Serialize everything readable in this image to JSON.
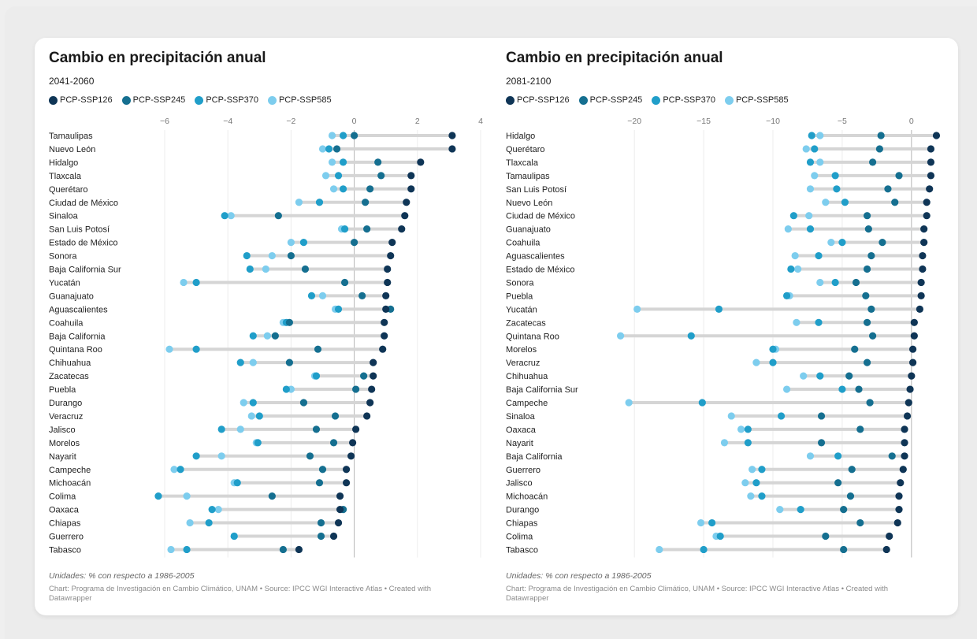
{
  "colors": {
    "PCP-SSP126": "#0f3556",
    "PCP-SSP245": "#156f90",
    "PCP-SSP370": "#209ec9",
    "PCP-SSP585": "#7dcdee",
    "connector": "#d5d5d5",
    "zero_line": "#b5b5b5",
    "grid": "#ececec"
  },
  "chart_data": [
    {
      "type": "scatter",
      "title": "Cambio en precipitación anual",
      "subtitle": "2041-2060",
      "legend": [
        "PCP-SSP126",
        "PCP-SSP245",
        "PCP-SSP370",
        "PCP-SSP585"
      ],
      "xlim": [
        -6,
        4
      ],
      "xticks": [
        -6,
        -4,
        -2,
        0,
        2,
        4
      ],
      "xtick_labels": [
        "−6",
        "−4",
        "−2",
        "0",
        "2",
        "4"
      ],
      "units_note": "Unidades: % con respecto a 1986-2005",
      "credit": "Chart: Programa de Investigación en Cambio Climático, UNAM • Source: IPCC WGI Interactive Atlas • Created with Datawrapper",
      "categories": [
        "Tamaulipas",
        "Nuevo León",
        "Hidalgo",
        "Tlaxcala",
        "Querétaro",
        "Ciudad de México",
        "Sinaloa",
        "San Luis Potosí",
        "Estado de México",
        "Sonora",
        "Baja California Sur",
        "Yucatán",
        "Guanajuato",
        "Aguascalientes",
        "Coahuila",
        "Baja California",
        "Quintana Roo",
        "Chihuahua",
        "Zacatecas",
        "Puebla",
        "Durango",
        "Veracruz",
        "Jalisco",
        "Morelos",
        "Nayarit",
        "Campeche",
        "Michoacán",
        "Colima",
        "Oaxaca",
        "Chiapas",
        "Guerrero",
        "Tabasco"
      ],
      "series": [
        {
          "name": "PCP-SSP126",
          "values": [
            3.1,
            3.1,
            2.1,
            1.8,
            1.8,
            1.65,
            1.6,
            1.5,
            1.2,
            1.15,
            1.05,
            1.05,
            1.0,
            1.0,
            0.95,
            0.95,
            0.9,
            0.6,
            0.6,
            0.55,
            0.5,
            0.4,
            0.05,
            -0.05,
            -0.1,
            -0.25,
            -0.25,
            -0.45,
            -0.45,
            -0.5,
            -0.65,
            -1.75
          ]
        },
        {
          "name": "PCP-SSP245",
          "values": [
            0.0,
            -0.55,
            0.75,
            0.85,
            0.5,
            0.35,
            -2.4,
            0.4,
            0.0,
            -2.0,
            -1.55,
            -0.3,
            0.25,
            1.15,
            -2.05,
            -2.5,
            -1.15,
            -2.05,
            0.3,
            0.05,
            -1.6,
            -0.6,
            -1.2,
            -0.65,
            -1.4,
            -1.0,
            -1.1,
            -2.6,
            -0.35,
            -1.05,
            -1.05,
            -2.25
          ]
        },
        {
          "name": "PCP-SSP370",
          "values": [
            -0.35,
            -0.8,
            -0.35,
            -0.5,
            -0.35,
            -1.1,
            -4.1,
            -0.3,
            -1.6,
            -3.4,
            -3.3,
            -5.0,
            -1.35,
            -0.5,
            -2.15,
            -3.2,
            -5.0,
            -3.6,
            -1.2,
            -2.15,
            -3.2,
            -3.0,
            -4.2,
            -3.05,
            -5.0,
            -5.5,
            -3.7,
            -6.2,
            -4.5,
            -4.6,
            -3.8,
            -5.3
          ]
        },
        {
          "name": "PCP-SSP585",
          "values": [
            -0.7,
            -1.0,
            -0.7,
            -0.9,
            -0.65,
            -1.75,
            -3.9,
            -0.4,
            -2.0,
            -2.6,
            -2.8,
            -5.4,
            -1.0,
            -0.6,
            -2.25,
            -2.75,
            -5.85,
            -3.2,
            -1.25,
            -2.0,
            -3.5,
            -3.25,
            -3.6,
            -3.1,
            -4.2,
            -5.7,
            -3.8,
            -5.3,
            -4.3,
            -5.2,
            -3.8,
            -5.8
          ]
        }
      ]
    },
    {
      "type": "scatter",
      "title": "Cambio en precipitación anual",
      "subtitle": "2081-2100",
      "legend": [
        "PCP-SSP126",
        "PCP-SSP245",
        "PCP-SSP370",
        "PCP-SSP585"
      ],
      "xlim": [
        -22,
        2
      ],
      "xticks": [
        -20,
        -15,
        -10,
        -5,
        0
      ],
      "xtick_labels": [
        "−20",
        "−15",
        "−10",
        "−5",
        "0"
      ],
      "units_note": "Unidades: % con respecto a 1986-2005",
      "credit": "Chart: Programa de Investigación en Cambio Climático, UNAM • Source: IPCC WGI Interactive Atlas • Created with Datawrapper",
      "categories": [
        "Hidalgo",
        "Querétaro",
        "Tlaxcala",
        "Tamaulipas",
        "San Luis Potosí",
        "Nuevo León",
        "Ciudad de México",
        "Guanajuato",
        "Coahuila",
        "Aguascalientes",
        "Estado de México",
        "Sonora",
        "Puebla",
        "Yucatán",
        "Zacatecas",
        "Quintana Roo",
        "Morelos",
        "Veracruz",
        "Chihuahua",
        "Baja California Sur",
        "Campeche",
        "Sinaloa",
        "Oaxaca",
        "Nayarit",
        "Baja California",
        "Guerrero",
        "Jalisco",
        "Michoacán",
        "Durango",
        "Chiapas",
        "Colima",
        "Tabasco"
      ],
      "series": [
        {
          "name": "PCP-SSP126",
          "values": [
            1.8,
            1.4,
            1.4,
            1.4,
            1.3,
            1.1,
            1.1,
            0.9,
            0.9,
            0.8,
            0.8,
            0.7,
            0.7,
            0.6,
            0.2,
            0.2,
            0.1,
            0.1,
            0.0,
            -0.1,
            -0.2,
            -0.3,
            -0.5,
            -0.5,
            -0.5,
            -0.6,
            -0.8,
            -0.9,
            -0.9,
            -1.0,
            -1.6,
            -1.8
          ]
        },
        {
          "name": "PCP-SSP245",
          "values": [
            -2.2,
            -2.3,
            -2.8,
            -0.9,
            -1.7,
            -1.2,
            -3.2,
            -3.1,
            -2.1,
            -2.9,
            -3.2,
            -4.0,
            -3.3,
            -2.9,
            -3.2,
            -2.8,
            -4.1,
            -3.2,
            -4.5,
            -3.8,
            -3.0,
            -6.5,
            -3.7,
            -6.5,
            -1.4,
            -4.3,
            -5.3,
            -4.4,
            -4.9,
            -3.7,
            -6.2,
            -4.9
          ]
        },
        {
          "name": "PCP-SSP370",
          "values": [
            -7.2,
            -7.0,
            -7.3,
            -5.5,
            -5.4,
            -4.8,
            -8.5,
            -7.3,
            -5.0,
            -6.7,
            -8.7,
            -5.5,
            -9.0,
            -13.9,
            -6.7,
            -15.9,
            -10.0,
            -10.0,
            -6.6,
            -5.0,
            -15.1,
            -9.4,
            -11.8,
            -11.8,
            -5.3,
            -10.8,
            -11.2,
            -10.8,
            -8.0,
            -14.4,
            -13.8,
            -15.0
          ]
        },
        {
          "name": "PCP-SSP585",
          "values": [
            -6.6,
            -7.6,
            -6.6,
            -7.0,
            -7.3,
            -6.2,
            -7.4,
            -8.9,
            -5.8,
            -8.4,
            -8.2,
            -6.6,
            -8.8,
            -19.8,
            -8.3,
            -21.0,
            -9.8,
            -11.2,
            -7.8,
            -9.0,
            -20.4,
            -13.0,
            -12.3,
            -13.5,
            -7.3,
            -11.5,
            -12.0,
            -11.6,
            -9.5,
            -15.2,
            -14.1,
            -18.2
          ]
        }
      ]
    }
  ]
}
